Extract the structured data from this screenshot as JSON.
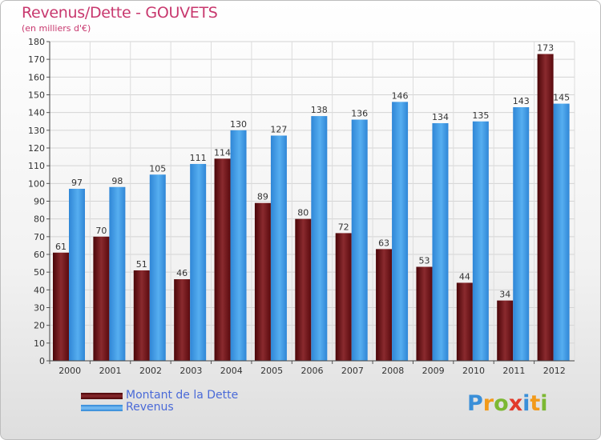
{
  "title": "Revenus/Dette - GOUVETS",
  "subtitle": "(en milliers d'€)",
  "colors": {
    "dette": "#7a1a1e",
    "revenus": "#3f9ae6",
    "title": "#c8386e",
    "legend_text": "#4a6ad8"
  },
  "chart_data": {
    "type": "bar",
    "categories": [
      "2000",
      "2001",
      "2002",
      "2003",
      "2004",
      "2005",
      "2006",
      "2007",
      "2008",
      "2009",
      "2010",
      "2011",
      "2012"
    ],
    "series": [
      {
        "name": "Montant de la Dette",
        "values": [
          61,
          70,
          51,
          46,
          114,
          89,
          80,
          72,
          63,
          53,
          44,
          34,
          173
        ]
      },
      {
        "name": "Revenus",
        "values": [
          97,
          98,
          105,
          111,
          130,
          127,
          138,
          136,
          146,
          134,
          135,
          143,
          145
        ]
      }
    ],
    "ylim": [
      0,
      180
    ],
    "yticks": [
      0,
      10,
      20,
      30,
      40,
      50,
      60,
      70,
      80,
      90,
      100,
      110,
      120,
      130,
      140,
      150,
      160,
      170,
      180
    ],
    "grid": true,
    "legend_position": "bottom-left"
  },
  "legend": {
    "dette_label": "Montant de la Dette",
    "revenus_label": "Revenus"
  },
  "logo": {
    "letters": [
      "P",
      "r",
      "o",
      "x",
      "i",
      "t",
      "i"
    ],
    "colors": [
      "#3a8fd8",
      "#f29a1a",
      "#7cb832",
      "#e23a2a",
      "#3a8fd8",
      "#f29a1a",
      "#7cb832"
    ]
  }
}
